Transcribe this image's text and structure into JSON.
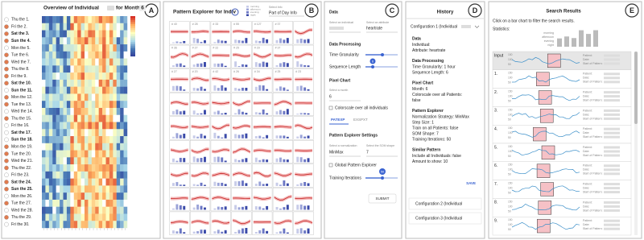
{
  "panel_a": {
    "badge": "A",
    "title": "Overview of Individual",
    "title_month": "for Month",
    "month": "6",
    "days": [
      "Thu the 1.",
      "Fri the 2.",
      "Sat the 3.",
      "Sun the 4.",
      "Mon the 5.",
      "Tue the 6.",
      "Wed the 7.",
      "Thu the 8.",
      "Fri the 9.",
      "Sat the 10.",
      "Sun the 11.",
      "Mon the 12.",
      "Tue the 13.",
      "Wed the 14.",
      "Thu the 15.",
      "Fri the 16.",
      "Sat the 17.",
      "Sun the 18.",
      "Mon the 19.",
      "Tue the 20.",
      "Wed the 21.",
      "Thu the 22.",
      "Fri the 23.",
      "Sat the 24.",
      "Sun the 25.",
      "Mon the 26.",
      "Tue the 27.",
      "Wed the 28.",
      "Thu the 29.",
      "Fri the 30."
    ]
  },
  "panel_b": {
    "badge": "B",
    "title": "Pattern Explorer for Indiv",
    "legend": [
      "morning",
      "afternoon",
      "evening",
      "night"
    ],
    "select_label": "Select Info",
    "select_value": "Part of Day Info",
    "cell_labels": [
      [
        "# 40",
        "# 28",
        "# 33",
        "# 55",
        "# 127",
        "# 37"
      ],
      [
        "# 36",
        "# 27",
        "# 22",
        "# 25",
        "# 29",
        "# 37"
      ],
      [
        "# 27",
        "# 20",
        "# 42",
        "# 26",
        "# 34",
        "# 25",
        "# 23"
      ]
    ]
  },
  "panel_c": {
    "badge": "C",
    "data": "Data",
    "select_individual": "Select an individual",
    "select_attribute": "Select an attribute",
    "attribute": "heartrate",
    "processing": "Data Processing",
    "granularity": "Time Granularity",
    "sequence_length": "Sequence Length",
    "sequence_value": "6",
    "pixel_chart": "Pixel Chart",
    "select_month": "Select a month",
    "month": "6",
    "colorscale": "Colorscale over all individuals",
    "tabs": [
      "PATEXP",
      "EXSPXT"
    ],
    "pattern_settings": "Pattern Explorer Settings",
    "select_normalization": "Select a normalization",
    "normalization": "MinMax",
    "select_som": "Select the SOM shape",
    "som": "7",
    "global": "Global Pattern Explorer",
    "iterations": "Training Iterations",
    "iterations_value": "50",
    "submit": "SUBMIT"
  },
  "panel_d": {
    "badge": "D",
    "title": "History",
    "config1": "Configuration 1 (Individual",
    "sections": [
      {
        "title": "Data",
        "lines": [
          "Individual:",
          "Attribute: heartrate"
        ]
      },
      {
        "title": "Data Processing",
        "lines": [
          "Time Granularity: 1 hour",
          "Sequence Length: 6"
        ]
      },
      {
        "title": "Pixel Chart",
        "lines": [
          "Month: 6",
          "Colorscale over all Patients:",
          "false"
        ]
      },
      {
        "title": "Pattern Explorer",
        "lines": [
          "Normalization Strategy: MinMax",
          "Step Size: 1",
          "Train on all Patients: false",
          "SOM Shape: 7",
          "Training Iterations: 50"
        ]
      },
      {
        "title": "Similar Pattern",
        "lines": [
          "Include all Individuals: false",
          "Amount to show: 10"
        ]
      }
    ],
    "save": "SAVE",
    "config2": "Configuration 2 (Individual",
    "config3": "Configuration 3 (Individual"
  },
  "panel_e": {
    "badge": "E",
    "title": "Search Results",
    "hint": "Click on a bar chart to filter the search results.",
    "statistics": "Statistics:",
    "stat_labels": [
      "morning",
      "afternoon",
      "evening",
      "night"
    ],
    "rows": [
      "Input",
      "1.",
      "2.",
      "3.",
      "4.",
      "5.",
      "6.",
      "7.",
      "8.",
      "9."
    ],
    "axis_ticks": [
      "150",
      "100",
      "50"
    ],
    "fields": [
      "Patient:",
      "Date:",
      "Start of Pattern:"
    ]
  }
}
